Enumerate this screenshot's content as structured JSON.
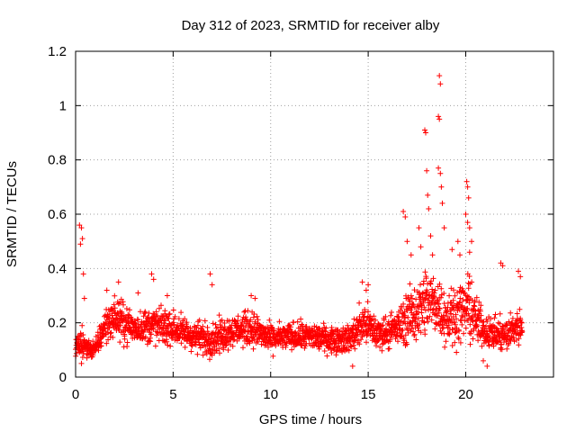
{
  "chart_data": {
    "type": "scatter",
    "title": "Day 312 of 2023, SRMTID for receiver alby",
    "xlabel": "GPS time / hours",
    "ylabel": "SRMTID / TECUs",
    "xlim": [
      0,
      24.5
    ],
    "ylim": [
      0,
      1.2
    ],
    "xticks": [
      0,
      5,
      10,
      15,
      20
    ],
    "xtick_labels": [
      "0",
      "5",
      "10",
      "15",
      "20"
    ],
    "yticks": [
      0,
      0.2,
      0.4,
      0.6,
      0.8,
      1.0,
      1.2
    ],
    "ytick_labels": [
      "0",
      "0.2",
      "0.4",
      "0.6",
      "0.8",
      "1",
      "1.2"
    ],
    "grid": true,
    "marker": "+",
    "marker_color": "#ff0000",
    "series": [
      {
        "name": "SRMTID",
        "profile": {
          "description": "approximate envelope of the dense point cloud read from the plot",
          "t_hours": [
            0.0,
            0.3,
            0.5,
            1.0,
            1.5,
            2.0,
            2.5,
            3.0,
            4.0,
            5.0,
            6.0,
            7.0,
            8.0,
            9.0,
            10.0,
            11.0,
            12.0,
            13.0,
            14.0,
            14.8,
            15.5,
            16.5,
            17.0,
            17.5,
            18.0,
            18.5,
            19.0,
            19.5,
            20.0,
            20.2,
            20.5,
            21.0,
            21.5,
            22.0,
            22.5,
            22.9
          ],
          "median": [
            0.11,
            0.13,
            0.11,
            0.1,
            0.19,
            0.22,
            0.2,
            0.18,
            0.19,
            0.18,
            0.15,
            0.14,
            0.17,
            0.18,
            0.14,
            0.15,
            0.15,
            0.14,
            0.14,
            0.2,
            0.16,
            0.18,
            0.22,
            0.24,
            0.28,
            0.27,
            0.22,
            0.23,
            0.25,
            0.26,
            0.21,
            0.17,
            0.16,
            0.15,
            0.18,
            0.19
          ],
          "spread": [
            0.05,
            0.1,
            0.05,
            0.05,
            0.09,
            0.1,
            0.1,
            0.08,
            0.1,
            0.09,
            0.08,
            0.09,
            0.08,
            0.09,
            0.07,
            0.07,
            0.07,
            0.07,
            0.07,
            0.12,
            0.08,
            0.09,
            0.14,
            0.15,
            0.18,
            0.17,
            0.14,
            0.15,
            0.15,
            0.18,
            0.12,
            0.08,
            0.08,
            0.09,
            0.09,
            0.1
          ]
        },
        "notable_points": [
          {
            "x": 0.2,
            "y": 0.56
          },
          {
            "x": 0.3,
            "y": 0.55
          },
          {
            "x": 0.35,
            "y": 0.51
          },
          {
            "x": 0.25,
            "y": 0.49
          },
          {
            "x": 0.4,
            "y": 0.38
          },
          {
            "x": 0.45,
            "y": 0.29
          },
          {
            "x": 1.6,
            "y": 0.32
          },
          {
            "x": 2.2,
            "y": 0.35
          },
          {
            "x": 3.2,
            "y": 0.31
          },
          {
            "x": 3.9,
            "y": 0.38
          },
          {
            "x": 4.0,
            "y": 0.36
          },
          {
            "x": 4.7,
            "y": 0.3
          },
          {
            "x": 6.9,
            "y": 0.38
          },
          {
            "x": 7.0,
            "y": 0.34
          },
          {
            "x": 9.0,
            "y": 0.3
          },
          {
            "x": 9.2,
            "y": 0.29
          },
          {
            "x": 14.7,
            "y": 0.35
          },
          {
            "x": 15.0,
            "y": 0.34
          },
          {
            "x": 14.9,
            "y": 0.32
          },
          {
            "x": 16.8,
            "y": 0.61
          },
          {
            "x": 16.9,
            "y": 0.59
          },
          {
            "x": 17.0,
            "y": 0.5
          },
          {
            "x": 17.2,
            "y": 0.45
          },
          {
            "x": 17.6,
            "y": 0.55
          },
          {
            "x": 17.7,
            "y": 0.48
          },
          {
            "x": 17.9,
            "y": 0.91
          },
          {
            "x": 17.95,
            "y": 0.9
          },
          {
            "x": 18.0,
            "y": 0.76
          },
          {
            "x": 18.05,
            "y": 0.67
          },
          {
            "x": 18.1,
            "y": 0.62
          },
          {
            "x": 18.2,
            "y": 0.52
          },
          {
            "x": 18.3,
            "y": 0.45
          },
          {
            "x": 18.65,
            "y": 1.11
          },
          {
            "x": 18.7,
            "y": 1.08
          },
          {
            "x": 18.6,
            "y": 0.96
          },
          {
            "x": 18.65,
            "y": 0.95
          },
          {
            "x": 18.6,
            "y": 0.77
          },
          {
            "x": 18.7,
            "y": 0.75
          },
          {
            "x": 18.75,
            "y": 0.7
          },
          {
            "x": 18.8,
            "y": 0.64
          },
          {
            "x": 18.9,
            "y": 0.55
          },
          {
            "x": 19.3,
            "y": 0.47
          },
          {
            "x": 19.6,
            "y": 0.5
          },
          {
            "x": 19.7,
            "y": 0.45
          },
          {
            "x": 20.05,
            "y": 0.72
          },
          {
            "x": 20.1,
            "y": 0.7
          },
          {
            "x": 20.15,
            "y": 0.66
          },
          {
            "x": 20.0,
            "y": 0.6
          },
          {
            "x": 20.1,
            "y": 0.57
          },
          {
            "x": 20.2,
            "y": 0.55
          },
          {
            "x": 20.3,
            "y": 0.5
          },
          {
            "x": 20.2,
            "y": 0.46
          },
          {
            "x": 21.8,
            "y": 0.42
          },
          {
            "x": 21.9,
            "y": 0.41
          },
          {
            "x": 22.7,
            "y": 0.39
          },
          {
            "x": 22.8,
            "y": 0.37
          },
          {
            "x": 20.9,
            "y": 0.06
          },
          {
            "x": 21.1,
            "y": 0.04
          },
          {
            "x": 14.2,
            "y": 0.04
          },
          {
            "x": 0.3,
            "y": 0.05
          }
        ]
      }
    ]
  }
}
